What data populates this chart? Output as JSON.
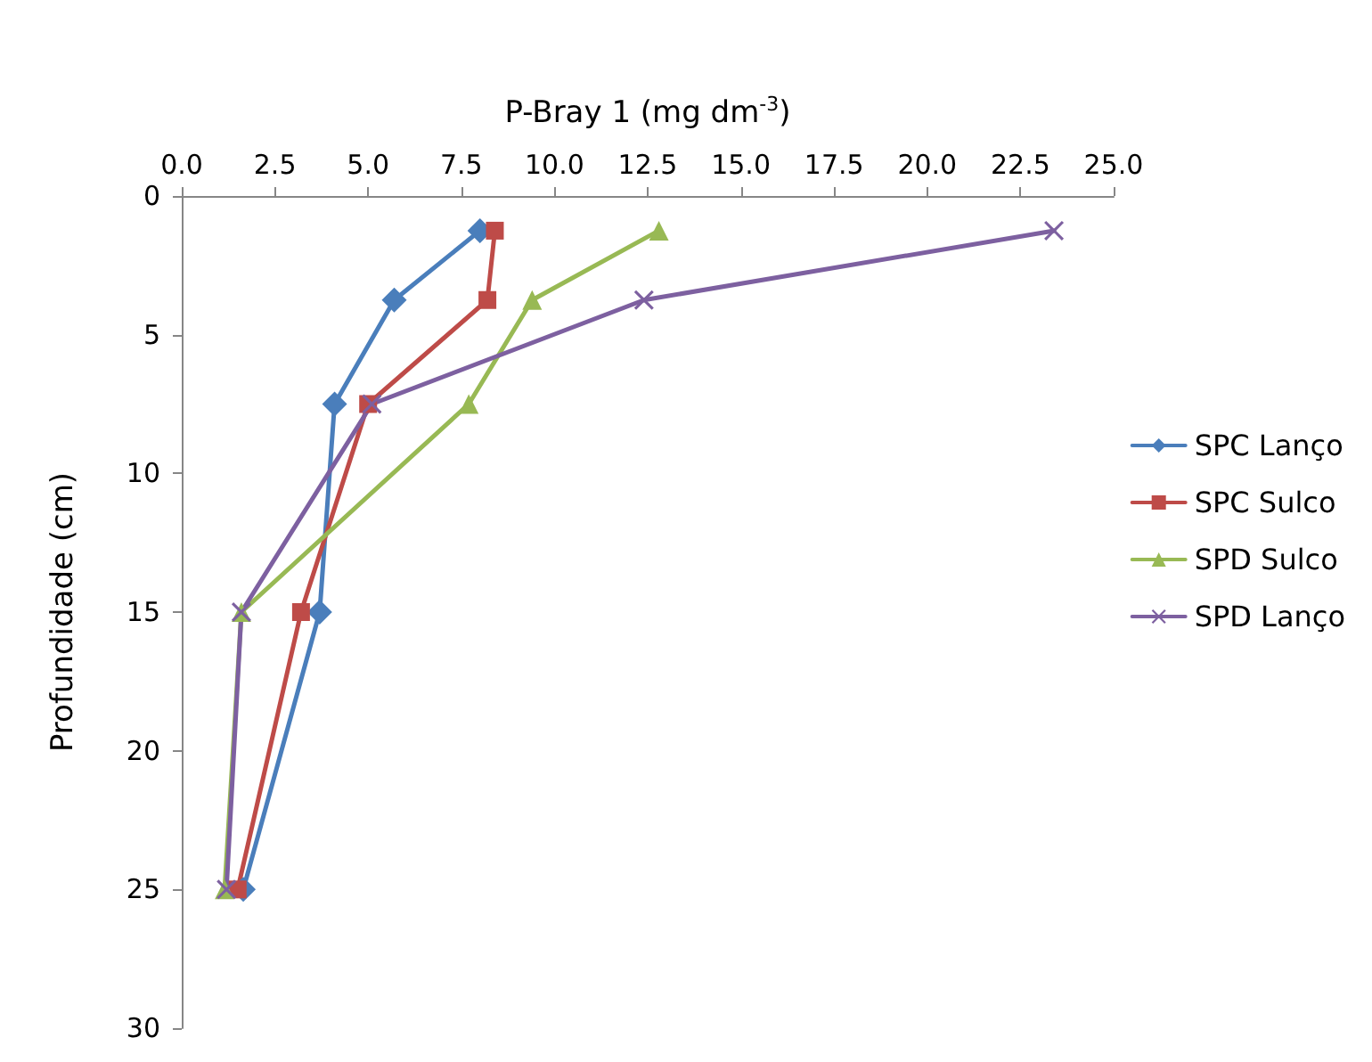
{
  "chart_data": {
    "type": "line",
    "xlabel": "P-Bray 1 (mg dm$^{-3}$)",
    "ylabel": "Profundidade (cm)",
    "series": [
      {
        "name": "SPC Lanço",
        "color": "#4a7ebb",
        "marker": "diamond",
        "x": [
          8.0,
          5.7,
          4.1,
          3.7,
          1.65
        ],
        "values": [
          1.25,
          3.75,
          7.5,
          15,
          25
        ]
      },
      {
        "name": "SPC Sulco",
        "color": "#be4b48",
        "marker": "square",
        "x": [
          8.4,
          8.2,
          5.0,
          3.2,
          1.5
        ],
        "values": [
          1.25,
          3.75,
          7.5,
          15,
          25
        ]
      },
      {
        "name": "SPD Sulco",
        "color": "#98b954",
        "marker": "triangle",
        "x": [
          12.8,
          9.4,
          7.7,
          1.6,
          1.15
        ],
        "values": [
          1.25,
          3.75,
          7.5,
          15,
          25
        ]
      },
      {
        "name": "SPD Lanço",
        "color": "#7d60a0",
        "marker": "cross",
        "x": [
          23.4,
          12.4,
          5.1,
          1.6,
          1.2
        ],
        "values": [
          1.25,
          3.75,
          7.5,
          15,
          25
        ]
      }
    ],
    "xlim": [
      0,
      25
    ],
    "xticks": [
      {
        "value": 0,
        "label": "0.0"
      },
      {
        "value": 2.5,
        "label": "2.5"
      },
      {
        "value": 5,
        "label": "5.0"
      },
      {
        "value": 7.5,
        "label": "7.5"
      },
      {
        "value": 10,
        "label": "10.0"
      },
      {
        "value": 12.5,
        "label": "12.5"
      },
      {
        "value": 15,
        "label": "15.0"
      },
      {
        "value": 17.5,
        "label": "17.5"
      },
      {
        "value": 20,
        "label": "20.0"
      },
      {
        "value": 22.5,
        "label": "22.5"
      },
      {
        "value": 25,
        "label": "25.0"
      }
    ],
    "ylim": [
      30,
      0
    ],
    "yticks": [
      0,
      5,
      10,
      15,
      20,
      25,
      30
    ],
    "grid": false,
    "legend": "right",
    "line_style": "solid"
  }
}
